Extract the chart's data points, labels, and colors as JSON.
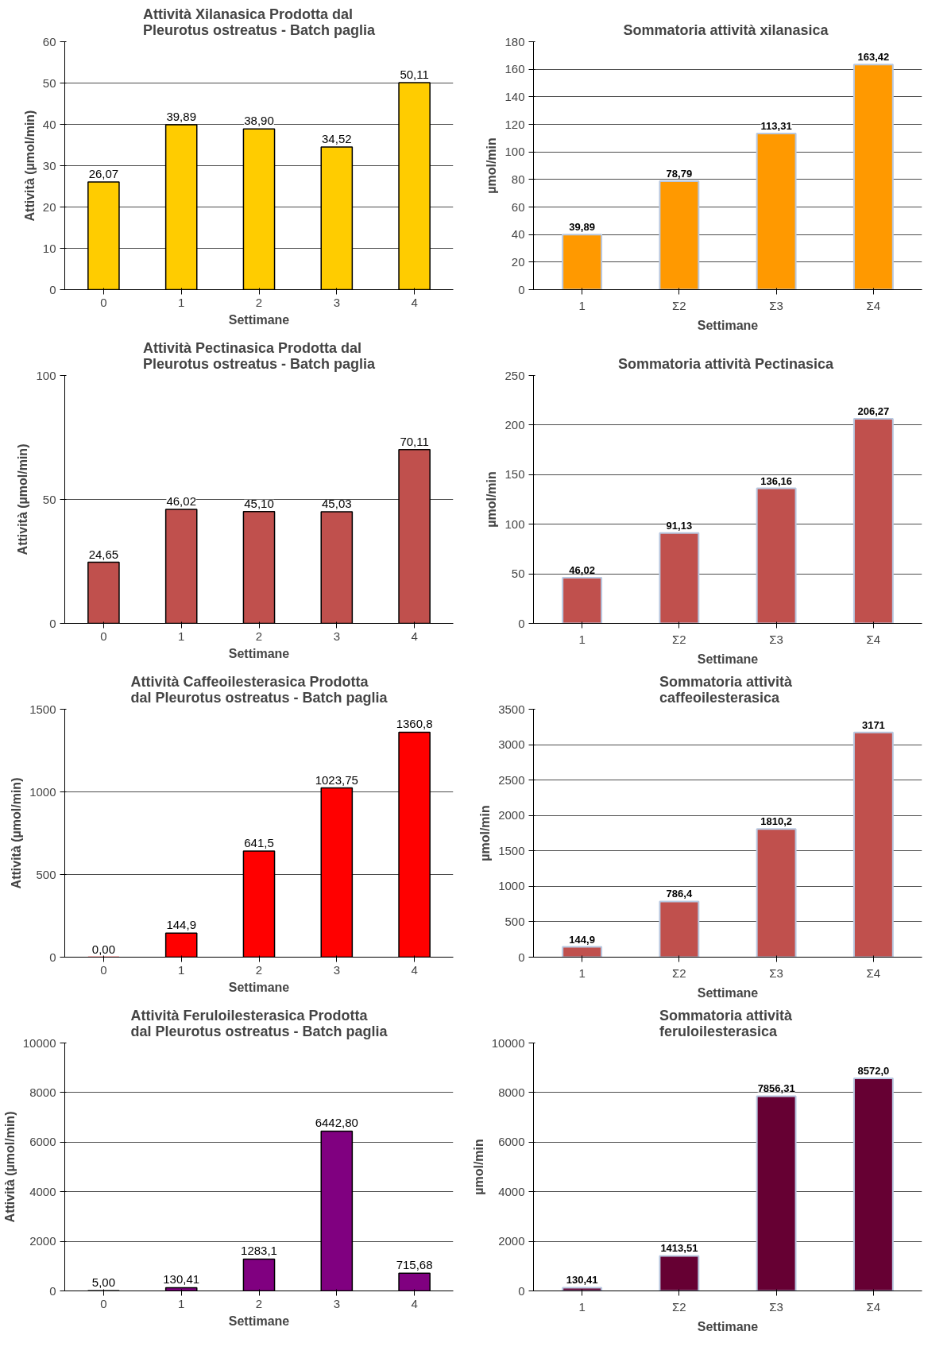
{
  "chart_data": [
    {
      "type": "bar",
      "title": "Attività Xilanasica Prodotta dal Pleurotus ostreatus - Batch paglia",
      "xlabel": "Settimane",
      "ylabel": "Attività (µmol/min)",
      "categories": [
        "0",
        "1",
        "2",
        "3",
        "4"
      ],
      "values": [
        26.07,
        39.89,
        38.9,
        34.52,
        50.11
      ],
      "color": "#ffcc00",
      "ylim": [
        0,
        60
      ],
      "yticks": [
        0,
        10,
        20,
        30,
        40,
        50,
        60
      ],
      "grid": "y",
      "value_labels": [
        "26,07",
        "39,89",
        "38,90",
        "34,52",
        "50,11"
      ]
    },
    {
      "type": "bar",
      "title": "Sommatoria  attività xilanasica",
      "xlabel": "Settimane",
      "ylabel": "µmol/min",
      "categories": [
        "1",
        "Σ2",
        "Σ3",
        "Σ4"
      ],
      "values": [
        39.89,
        78.79,
        113.31,
        163.42
      ],
      "color": "#ff9900",
      "ylim": [
        0,
        180
      ],
      "yticks": [
        0,
        20,
        40,
        60,
        80,
        100,
        120,
        140,
        160,
        180
      ],
      "grid": "y",
      "value_labels": [
        "39,89",
        "78,79",
        "113,31",
        "163,42"
      ]
    },
    {
      "type": "bar",
      "title": "Attività Pectinasica Prodotta dal Pleurotus ostreatus - Batch paglia",
      "xlabel": "Settimane",
      "ylabel": "Attività (µmol/min)",
      "categories": [
        "0",
        "1",
        "2",
        "3",
        "4"
      ],
      "values": [
        24.65,
        46.02,
        45.1,
        45.03,
        70.11
      ],
      "color": "#c0504d",
      "ylim": [
        0,
        100
      ],
      "yticks": [
        0,
        50,
        100
      ],
      "grid": "y",
      "value_labels": [
        "24,65",
        "46,02",
        "45,10",
        "45,03",
        "70,11"
      ]
    },
    {
      "type": "bar",
      "title": "Sommatoria  attività Pectinasica",
      "xlabel": "Settimane",
      "ylabel": "µmol/min",
      "categories": [
        "1",
        "Σ2",
        "Σ3",
        "Σ4"
      ],
      "values": [
        46.02,
        91.13,
        136.16,
        206.27
      ],
      "color": "#c0504d",
      "ylim": [
        0,
        250
      ],
      "yticks": [
        0,
        50,
        100,
        150,
        200,
        250
      ],
      "grid": "y",
      "value_labels": [
        "46,02",
        "91,13",
        "136,16",
        "206,27"
      ]
    },
    {
      "type": "bar",
      "title": "Attività Caffeoilesterasica Prodotta dal Pleurotus ostreatus - Batch paglia",
      "xlabel": "Settimane",
      "ylabel": "Attività (µmol/min)",
      "categories": [
        "0",
        "1",
        "2",
        "3",
        "4"
      ],
      "values": [
        0.0,
        144.9,
        641.5,
        1023.75,
        1360.8
      ],
      "color": "#ff0000",
      "ylim": [
        0,
        1500
      ],
      "yticks": [
        0,
        500,
        1000,
        1500
      ],
      "grid": "y",
      "value_labels": [
        "0,00",
        "144,9",
        "641,5",
        "1023,75",
        "1360,8"
      ]
    },
    {
      "type": "bar",
      "title": "Sommatoria  attività caffeoilesterasica",
      "xlabel": "Settimane",
      "ylabel": "µmol/min",
      "categories": [
        "1",
        "Σ2",
        "Σ3",
        "Σ4"
      ],
      "values": [
        144.9,
        786.4,
        1810.2,
        3171
      ],
      "color": "#c0504d",
      "ylim": [
        0,
        3500
      ],
      "yticks": [
        0,
        500,
        1000,
        1500,
        2000,
        2500,
        3000,
        3500
      ],
      "grid": "y",
      "value_labels": [
        "144,9",
        "786,4",
        "1810,2",
        "3171"
      ]
    },
    {
      "type": "bar",
      "title": "Attività Feruloilesterasica Prodotta dal Pleurotus ostreatus - Batch paglia",
      "xlabel": "Settimane",
      "ylabel": "Attività (µmol/min)",
      "categories": [
        "0",
        "1",
        "2",
        "3",
        "4"
      ],
      "values": [
        5.0,
        130.41,
        1283.1,
        6442.8,
        715.68
      ],
      "color": "#800080",
      "ylim": [
        0,
        10000
      ],
      "yticks": [
        0,
        2000,
        4000,
        6000,
        8000,
        10000
      ],
      "grid": "y",
      "value_labels": [
        "5,00",
        "130,41",
        "1283,1",
        "6442,80",
        "715,68"
      ]
    },
    {
      "type": "bar",
      "title": "Sommatoria  attività feruloilesterasica",
      "xlabel": "Settimane",
      "ylabel": "µmol/min",
      "categories": [
        "1",
        "Σ2",
        "Σ3",
        "Σ4"
      ],
      "values": [
        130.41,
        1413.51,
        7856.31,
        8572.0
      ],
      "color": "#660033",
      "ylim": [
        0,
        10000
      ],
      "yticks": [
        0,
        2000,
        4000,
        6000,
        8000,
        10000
      ],
      "grid": "y",
      "value_labels": [
        "130,41",
        "1413,51",
        "7856,31",
        "8572,0"
      ]
    }
  ]
}
